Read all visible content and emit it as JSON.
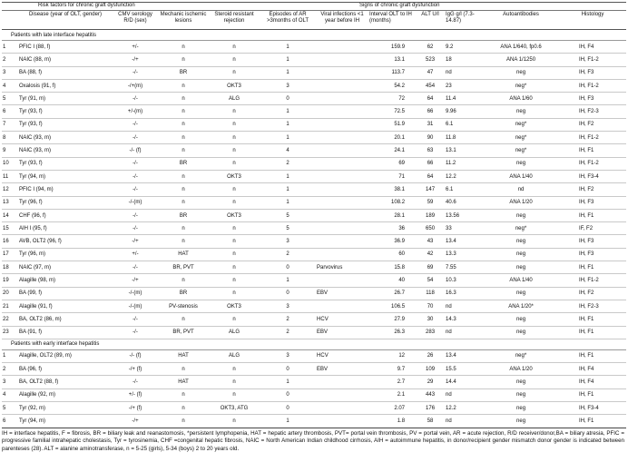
{
  "group_headers": {
    "risk": "Risk factors for chronic graft dysfunction",
    "signs": "Signs of chronic graft dysfunction"
  },
  "columns": [
    "",
    "Disease (year of OLT, gender)",
    "CMV serology R/D (sex)",
    "Mechanic ischemic lesions",
    "Steroid resistant rejection",
    "Episodes of AR >3months of OLT",
    "Viral infections <1 year before IH",
    "Interval OLT to IH (months)",
    "ALT U/l",
    "IgG g/l (7.3-14.87)",
    "Autoantibodies",
    "Histology"
  ],
  "sections": [
    {
      "title": "Patients with late interface hepatitis",
      "rows": [
        [
          "1",
          "PFIC I (88, f)",
          "+/-",
          "n",
          "n",
          "1",
          "",
          "159.9",
          "62",
          "9.2",
          "ANA 1/640, fp0.6",
          "IH, F4"
        ],
        [
          "2",
          "NAIC (88, m)",
          "-/+",
          "n",
          "n",
          "1",
          "",
          "13.1",
          "523",
          "18",
          "ANA 1/1250",
          "IH, F1-2"
        ],
        [
          "3",
          "BA (88, f)",
          "-/-",
          "BR",
          "n",
          "1",
          "",
          "113.7",
          "47",
          "nd",
          "neg",
          "IH, F3"
        ],
        [
          "4",
          "Oxalosis (91, f)",
          "-/+(m)",
          "n",
          "OKT3",
          "3",
          "",
          "54.2",
          "454",
          "23",
          "neg*",
          "IH, F1-2"
        ],
        [
          "5",
          "Tyr (91, m)",
          "-/-",
          "n",
          "ALG",
          "0",
          "",
          "72",
          "64",
          "11.4",
          "ANA 1/60",
          "IH, F3"
        ],
        [
          "6",
          "Tyr (93, f)",
          "+/-(m)",
          "n",
          "n",
          "1",
          "",
          "72.5",
          "66",
          "9.96",
          "neg",
          "IH, F2-3"
        ],
        [
          "7",
          "Tyr (93, f)",
          "-/-",
          "n",
          "n",
          "1",
          "",
          "51.9",
          "31",
          "6.1",
          "neg*",
          "IH, F2"
        ],
        [
          "8",
          "NAIC (93, m)",
          "-/-",
          "n",
          "n",
          "1",
          "",
          "20.1",
          "90",
          "11.8",
          "neg*",
          "IH, F1-2"
        ],
        [
          "9",
          "NAIC (93, m)",
          "-/- (f)",
          "n",
          "n",
          "4",
          "",
          "24.1",
          "63",
          "13.1",
          "neg*",
          "IH, F1"
        ],
        [
          "10",
          "Tyr (93, f)",
          "-/-",
          "BR",
          "n",
          "2",
          "",
          "69",
          "66",
          "11.2",
          "neg",
          "IH, F1-2"
        ],
        [
          "11",
          "Tyr (94, m)",
          "-/-",
          "n",
          "OKT3",
          "1",
          "",
          "71",
          "64",
          "12.2",
          "ANA 1/40",
          "IH, F3-4"
        ],
        [
          "12",
          "PFIC I (94, m)",
          "-/-",
          "n",
          "n",
          "1",
          "",
          "38.1",
          "147",
          "6.1",
          "nd",
          "IH, F2"
        ],
        [
          "13",
          "Tyr (96, f)",
          "-/-(m)",
          "n",
          "n",
          "1",
          "",
          "108.2",
          "59",
          "40.6",
          "ANA 1/20",
          "IH, F3"
        ],
        [
          "14",
          "CHF (96, f)",
          "-/-",
          "BR",
          "OKT3",
          "5",
          "",
          "28.1",
          "189",
          "13.56",
          "neg",
          "IH, F1"
        ],
        [
          "15",
          "AIH I (95, f)",
          "-/-",
          "n",
          "n",
          "5",
          "",
          "36",
          "650",
          "33",
          "neg*",
          "IF, F2"
        ],
        [
          "16",
          "AVB, OLT2 (96, f)",
          "-/+",
          "n",
          "n",
          "3",
          "",
          "36.9",
          "43",
          "13.4",
          "neg",
          "IH, F3"
        ],
        [
          "17",
          "Tyr (96, m)",
          "+/-",
          "HAT",
          "n",
          "2",
          "",
          "60",
          "42",
          "13.3",
          "neg",
          "IH, F3"
        ],
        [
          "18",
          "NAIC (97, m)",
          "-/-",
          "BR, PVT",
          "n",
          "0",
          "Parvovirus",
          "15.8",
          "69",
          "7.55",
          "neg",
          "IH, F1"
        ],
        [
          "19",
          "Alagille (98, m)",
          "-/+",
          "n",
          "n",
          "1",
          "",
          "40",
          "54",
          "10.3",
          "ANA 1/40",
          "IH, F1-2"
        ],
        [
          "20",
          "BA (99, f)",
          "-/-(m)",
          "BR",
          "n",
          "0",
          "EBV",
          "26.7",
          "118",
          "16.3",
          "neg",
          "IH, F2"
        ],
        [
          "21",
          "Alagille (91, f)",
          "-/-(m)",
          "PV-stenosis",
          "OKT3",
          "3",
          "",
          "106.5",
          "70",
          "nd",
          "ANA 1/20*",
          "IH, F2-3"
        ],
        [
          "22",
          "BA, OLT2 (86, m)",
          "-/-",
          "n",
          "n",
          "2",
          "HCV",
          "27.9",
          "30",
          "14.3",
          "neg",
          "IH, F1"
        ],
        [
          "23",
          "BA (91, f)",
          "-/-",
          "BR, PVT",
          "ALG",
          "2",
          "EBV",
          "26.3",
          "283",
          "nd",
          "neg",
          "IH, F1"
        ]
      ]
    },
    {
      "title": "Patients with early interface hepatitis",
      "rows": [
        [
          "1",
          "Alagille, OLT2 (89, m)",
          "-/- (f)",
          "HAT",
          "ALG",
          "3",
          "HCV",
          "12",
          "26",
          "13.4",
          "neg*",
          "IH, F1"
        ],
        [
          "2",
          "BA (96, f)",
          "-/+ (f)",
          "n",
          "n",
          "0",
          "EBV",
          "9.7",
          "109",
          "15.5",
          "ANA 1/20",
          "IH, F4"
        ],
        [
          "3",
          "BA, OLT2 (88, f)",
          "-/-",
          "HAT",
          "n",
          "1",
          "",
          "2.7",
          "29",
          "14.4",
          "neg",
          "IH, F4"
        ],
        [
          "4",
          "Alagille (92, m)",
          "+/- (f)",
          "n",
          "n",
          "0",
          "",
          "2.1",
          "443",
          "nd",
          "neg",
          "IH, F1"
        ],
        [
          "5",
          "Tyr (92, m)",
          "-/+ (f)",
          "n",
          "OKT3, ATG",
          "0",
          "",
          "2.07",
          "176",
          "12.2",
          "neg",
          "IH, F3-4"
        ],
        [
          "6",
          "Tyr (94, m)",
          "-/+",
          "n",
          "n",
          "1",
          "",
          "1.8",
          "58",
          "nd",
          "neg",
          "IH, F1"
        ]
      ]
    }
  ],
  "footnote": "IH = interface hepatitis, F = fibrosis, BR = biliary leak and reanastomosis, *persistent lymphopenia, HAT = hepatic artery thrombosis, PVT= portal vein thrombosis, PV = portal vein, AR = acute rejection, R/D receiver/donor,BA = biliary atresia, PFIC = progressive familial intrahepatic cholestasis, Tyr = tyrosinemia, CHF =congenital hepatic fibrosis, NAIC = North American Indian childhood cirrhosis, AIH = autoimmune hepatitis, in donor/recipient gender mismatch donor gender is indicated between parenteses (28). ALT = alanine aminotransferase, n = 5-25 (girls), 5-34 (boys) 2 to 20 years old."
}
